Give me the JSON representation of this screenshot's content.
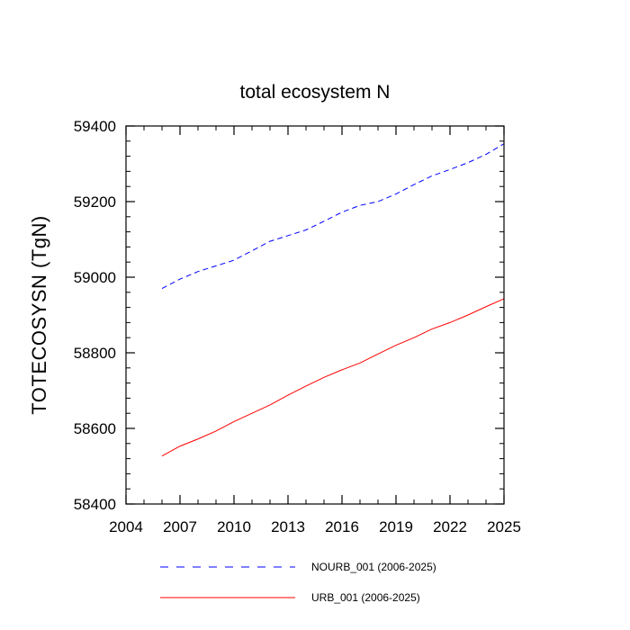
{
  "chart_data": {
    "type": "line",
    "title": "total ecosystem N",
    "xlabel": "",
    "ylabel": "TOTECOSYSN  (TgN)",
    "xlim": [
      2004,
      2025
    ],
    "ylim": [
      58400,
      59400
    ],
    "xticks": [
      2004,
      2007,
      2010,
      2013,
      2016,
      2019,
      2022,
      2025
    ],
    "yticks": [
      58400,
      58600,
      58800,
      59000,
      59200,
      59400
    ],
    "xtick_labels": [
      "2004",
      "2007",
      "2010",
      "2013",
      "2016",
      "2019",
      "2022",
      "2025"
    ],
    "ytick_labels": [
      "58400",
      "58600",
      "58800",
      "59000",
      "59200",
      "59400"
    ],
    "x": [
      2006,
      2007,
      2008,
      2009,
      2010,
      2011,
      2012,
      2013,
      2014,
      2015,
      2016,
      2017,
      2018,
      2019,
      2020,
      2021,
      2022,
      2023,
      2024,
      2025
    ],
    "series": [
      {
        "name": "NOURB_001 (2006-2025)",
        "color": "#0000ff",
        "dash": "dashed",
        "values": [
          58970,
          58995,
          59015,
          59030,
          59045,
          59070,
          59095,
          59110,
          59125,
          59148,
          59172,
          59190,
          59200,
          59220,
          59245,
          59268,
          59285,
          59303,
          59325,
          59353
        ]
      },
      {
        "name": "URB_001 (2006-2025)",
        "color": "#ff0000",
        "dash": "solid",
        "values": [
          58527,
          58553,
          58572,
          58593,
          58618,
          58640,
          58662,
          58688,
          58712,
          58735,
          58755,
          58773,
          58797,
          58820,
          58840,
          58863,
          58880,
          58900,
          58922,
          58943
        ]
      }
    ],
    "legend": {
      "position": "bottom",
      "entries": [
        "NOURB_001 (2006-2025)",
        "URB_001 (2006-2025)"
      ]
    },
    "grid": false
  }
}
